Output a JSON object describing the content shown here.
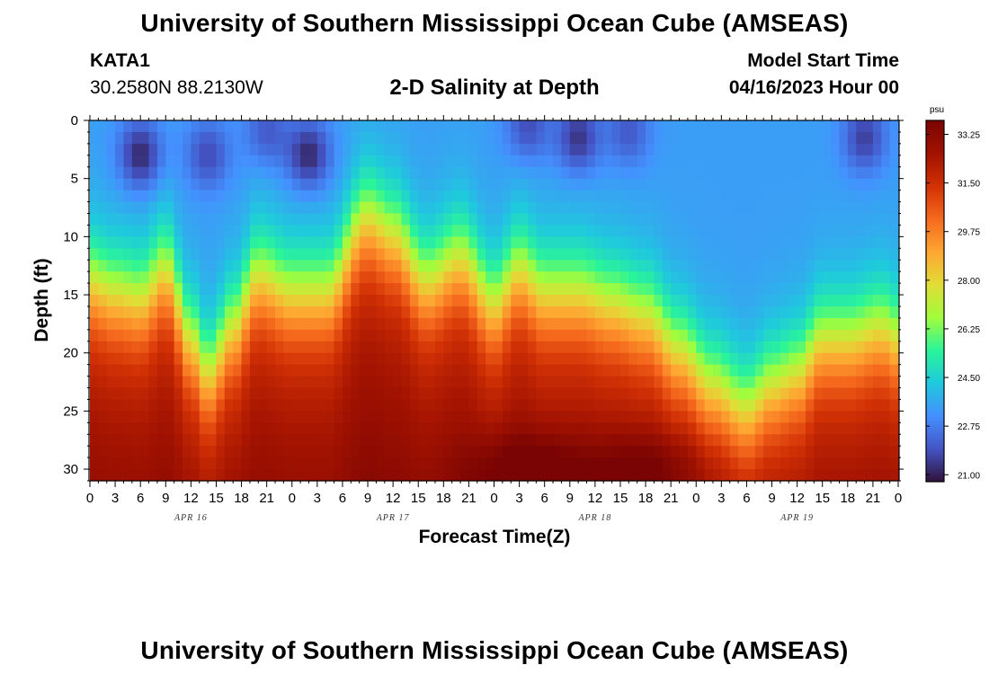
{
  "page": {
    "title": "University of Southern Mississippi Ocean Cube (AMSEAS)",
    "footer_title": "University of Southern Mississippi Ocean Cube (AMSEAS)"
  },
  "station": {
    "id": "KATA1",
    "coords": "30.2580N  88.2130W"
  },
  "model_start": {
    "label": "Model Start Time",
    "value": "04/16/2023 Hour 00"
  },
  "chart_data": {
    "type": "heatmap",
    "title": "2-D Salinity at Depth",
    "xlabel": "Forecast Time(Z)",
    "ylabel": "Depth (ft)",
    "x_tick_labels": [
      "0",
      "3",
      "6",
      "9",
      "12",
      "15",
      "18",
      "21",
      "0",
      "3",
      "6",
      "9",
      "12",
      "15",
      "18",
      "21",
      "0",
      "3",
      "6",
      "9",
      "12",
      "15",
      "18",
      "21",
      "0",
      "3",
      "6",
      "9",
      "12",
      "15",
      "18",
      "21",
      "0"
    ],
    "day_labels": [
      "APR 16",
      "APR 17",
      "APR 18",
      "APR 19"
    ],
    "day_label_positions_hours": [
      12,
      36,
      60,
      84
    ],
    "x_range_hours": [
      0,
      96
    ],
    "y_tick_labels": [
      "0",
      "5",
      "10",
      "15",
      "20",
      "25",
      "30"
    ],
    "y_tick_values": [
      0,
      5,
      10,
      15,
      20,
      25,
      30
    ],
    "ylim": [
      0,
      31
    ],
    "colorbar": {
      "unit": "psu",
      "min": 20.75,
      "max": 33.75,
      "tick_values": [
        21.0,
        22.75,
        24.5,
        26.25,
        28.0,
        29.75,
        31.5,
        33.25
      ],
      "tick_labels": [
        "21.00",
        "22.75",
        "24.50",
        "26.25",
        "28.00",
        "29.75",
        "31.50",
        "33.25"
      ],
      "colors": [
        "#30123b",
        "#4454c4",
        "#4490fe",
        "#1fc9dd",
        "#2af598",
        "#a2fc3c",
        "#e1dd37",
        "#fea632",
        "#f5691d",
        "#d23105",
        "#a11201",
        "#7a0403"
      ]
    },
    "halocline_depth_ft_by_hour": [
      {
        "hour": 0,
        "depth": 11
      },
      {
        "hour": 3,
        "depth": 12
      },
      {
        "hour": 6,
        "depth": 12.5
      },
      {
        "hour": 9,
        "depth": 10
      },
      {
        "hour": 12,
        "depth": 16
      },
      {
        "hour": 14,
        "depth": 19
      },
      {
        "hour": 17,
        "depth": 15
      },
      {
        "hour": 20,
        "depth": 10.5
      },
      {
        "hour": 24,
        "depth": 12
      },
      {
        "hour": 28,
        "depth": 12
      },
      {
        "hour": 33,
        "depth": 5.5
      },
      {
        "hour": 36,
        "depth": 7
      },
      {
        "hour": 40,
        "depth": 11
      },
      {
        "hour": 44,
        "depth": 9
      },
      {
        "hour": 48,
        "depth": 13
      },
      {
        "hour": 51,
        "depth": 10
      },
      {
        "hour": 54,
        "depth": 12
      },
      {
        "hour": 58,
        "depth": 12
      },
      {
        "hour": 62,
        "depth": 13
      },
      {
        "hour": 66,
        "depth": 14
      },
      {
        "hour": 70,
        "depth": 17
      },
      {
        "hour": 74,
        "depth": 20
      },
      {
        "hour": 78,
        "depth": 22
      },
      {
        "hour": 81,
        "depth": 20
      },
      {
        "hour": 84,
        "depth": 19
      },
      {
        "hour": 87,
        "depth": 16
      },
      {
        "hour": 90,
        "depth": 16
      },
      {
        "hour": 94,
        "depth": 15
      },
      {
        "hour": 96,
        "depth": 16
      }
    ],
    "surface_fresh_patches": [
      {
        "hour": 6,
        "depth": 3,
        "strength": 1.0
      },
      {
        "hour": 14,
        "depth": 3,
        "strength": 0.7
      },
      {
        "hour": 21,
        "depth": 1,
        "strength": 0.6
      },
      {
        "hour": 26,
        "depth": 3,
        "strength": 1.0
      },
      {
        "hour": 52,
        "depth": 0.5,
        "strength": 0.7
      },
      {
        "hour": 58,
        "depth": 1.5,
        "strength": 0.9
      },
      {
        "hour": 64,
        "depth": 1,
        "strength": 0.6
      },
      {
        "hour": 92,
        "depth": 1.5,
        "strength": 0.8
      }
    ],
    "deep_salty_patch": [
      {
        "hour": 52,
        "depth": 30,
        "strength": 1.0
      },
      {
        "hour": 66,
        "depth": 30,
        "strength": 0.9
      }
    ]
  }
}
